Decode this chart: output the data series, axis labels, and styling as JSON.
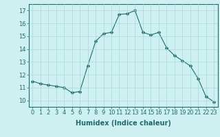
{
  "x": [
    0,
    1,
    2,
    3,
    4,
    5,
    6,
    7,
    8,
    9,
    10,
    11,
    12,
    13,
    14,
    15,
    16,
    17,
    18,
    19,
    20,
    21,
    22,
    23
  ],
  "y": [
    11.5,
    11.3,
    11.2,
    11.1,
    11.0,
    10.6,
    10.7,
    12.7,
    14.6,
    15.2,
    15.3,
    16.7,
    16.75,
    17.0,
    15.3,
    15.1,
    15.3,
    14.1,
    13.5,
    13.1,
    12.7,
    11.7,
    10.3,
    9.9
  ],
  "line_color": "#1e6b6b",
  "marker": "D",
  "marker_size": 2.5,
  "bg_color": "#cff0f0",
  "grid_color": "#a8d8d8",
  "xlabel": "Humidex (Indice chaleur)",
  "xlim": [
    -0.5,
    23.5
  ],
  "ylim": [
    9.5,
    17.5
  ],
  "yticks": [
    10,
    11,
    12,
    13,
    14,
    15,
    16,
    17
  ],
  "xticks": [
    0,
    1,
    2,
    3,
    4,
    5,
    6,
    7,
    8,
    9,
    10,
    11,
    12,
    13,
    14,
    15,
    16,
    17,
    18,
    19,
    20,
    21,
    22,
    23
  ],
  "tick_color": "#1e6b6b",
  "label_fontsize": 7,
  "tick_fontsize": 6
}
